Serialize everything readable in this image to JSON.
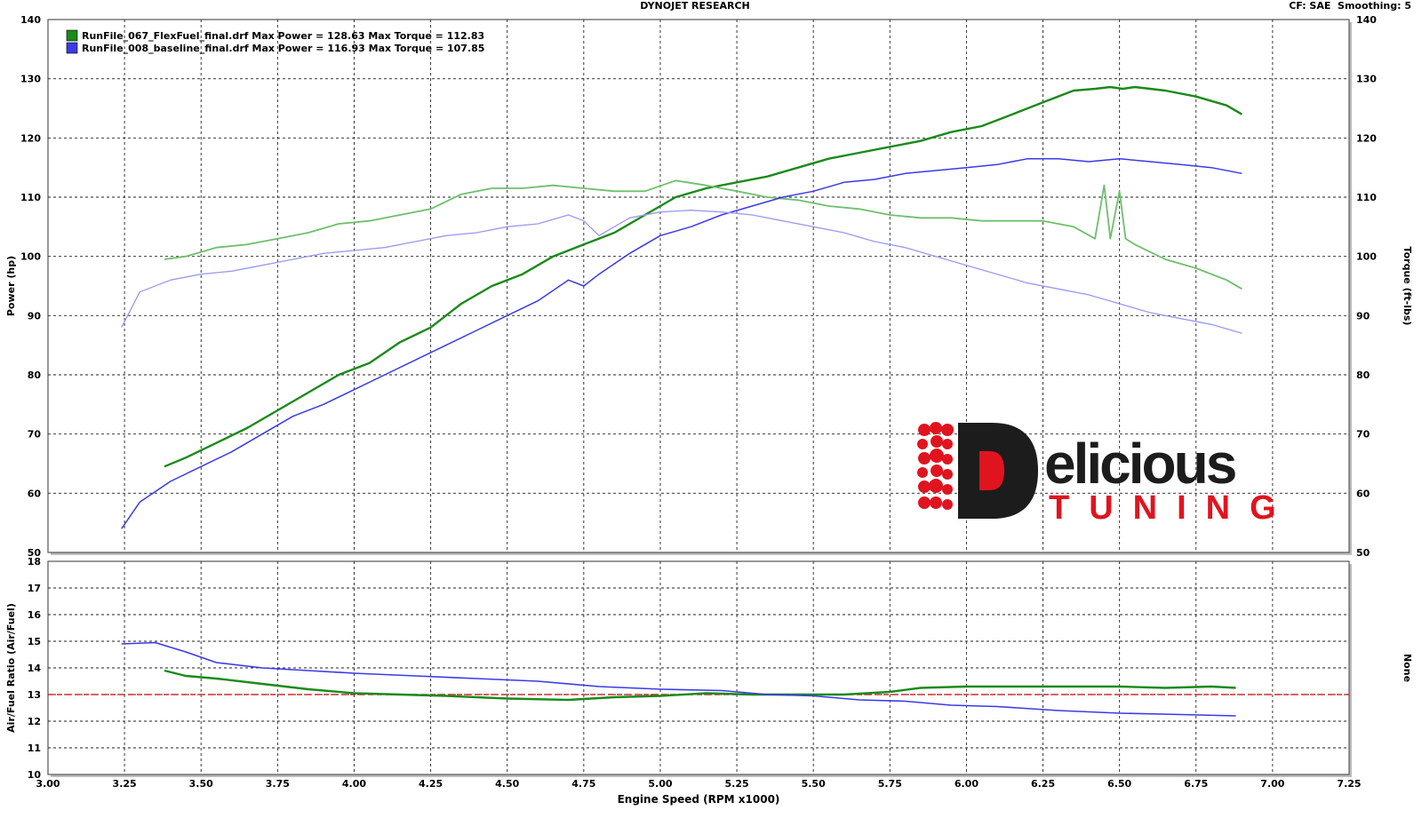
{
  "header": {
    "title": "DYNOJET RESEARCH",
    "cf": "CF: SAE",
    "smoothing": "Smoothing: 5"
  },
  "colors": {
    "run1": "#1a8a1a",
    "run1_torque": "#6cc06c",
    "run2": "#3a3ae8",
    "run2_torque": "#9a9af0",
    "target_line": "#e02020",
    "logo_red": "#e0141e",
    "logo_dark": "#1c1c1c"
  },
  "logo": {
    "text_main": "elicious",
    "text_letter": "D",
    "text_sub": "TUNING"
  },
  "chart_data": [
    {
      "type": "line",
      "legend": [
        {
          "name": "RunFile_067_FlexFuel_final.drf",
          "max_power_label": "Max Power = 128.63",
          "max_torque_label": "Max Torque = 112.83"
        },
        {
          "name": "RunFile_008_baseline_final.drf",
          "max_power_label": "Max Power = 116.93",
          "max_torque_label": "Max Torque = 107.85"
        }
      ],
      "ylabel": "Power (hp)",
      "y2label": "Torque (ft-lbs)",
      "ylim": [
        50,
        140
      ],
      "y2lim": [
        50,
        140
      ],
      "yticks": [
        "50",
        "60",
        "70",
        "80",
        "90",
        "100",
        "110",
        "120",
        "130",
        "140"
      ],
      "xlim": [
        3.0,
        7.25
      ],
      "grid": true,
      "legend_position": "top-left",
      "series": [
        {
          "name": "RunFile_067_FlexFuel_final.drf",
          "measure": "power",
          "x": [
            3.38,
            3.45,
            3.55,
            3.65,
            3.75,
            3.85,
            3.95,
            4.05,
            4.15,
            4.25,
            4.35,
            4.45,
            4.55,
            4.65,
            4.75,
            4.85,
            4.95,
            5.05,
            5.15,
            5.25,
            5.35,
            5.45,
            5.55,
            5.65,
            5.75,
            5.85,
            5.95,
            6.05,
            6.15,
            6.25,
            6.35,
            6.42,
            6.47,
            6.51,
            6.55,
            6.65,
            6.75,
            6.85,
            6.9
          ],
          "y": [
            64.5,
            66,
            68.5,
            71,
            74,
            77,
            80,
            82,
            85.5,
            88,
            92,
            95,
            97,
            100,
            102,
            104,
            107,
            110,
            111.5,
            112.5,
            113.5,
            115,
            116.5,
            117.5,
            118.5,
            119.5,
            121,
            122,
            124,
            126,
            128,
            128.3,
            128.6,
            128.3,
            128.6,
            128,
            127,
            125.5,
            124
          ]
        },
        {
          "name": "RunFile_067_FlexFuel_final.drf",
          "measure": "torque",
          "x": [
            3.38,
            3.45,
            3.55,
            3.65,
            3.75,
            3.85,
            3.95,
            4.05,
            4.15,
            4.25,
            4.35,
            4.45,
            4.55,
            4.65,
            4.75,
            4.85,
            4.95,
            5.05,
            5.15,
            5.25,
            5.35,
            5.45,
            5.55,
            5.65,
            5.75,
            5.85,
            5.95,
            6.05,
            6.15,
            6.25,
            6.35,
            6.42,
            6.45,
            6.47,
            6.5,
            6.52,
            6.55,
            6.65,
            6.75,
            6.85,
            6.9
          ],
          "y": [
            99.5,
            100,
            101.5,
            102,
            103,
            104,
            105.5,
            106,
            107,
            108,
            110.5,
            111.5,
            111.5,
            112,
            111.5,
            111,
            111,
            112.8,
            112,
            111,
            110,
            109.5,
            108.5,
            108,
            107,
            106.5,
            106.5,
            106,
            106,
            106,
            105,
            103,
            112,
            103,
            111,
            103,
            102,
            99.5,
            98,
            96,
            94.5
          ]
        },
        {
          "name": "RunFile_008_baseline_final.drf",
          "measure": "power",
          "x": [
            3.24,
            3.3,
            3.4,
            3.5,
            3.6,
            3.7,
            3.8,
            3.9,
            4.0,
            4.1,
            4.2,
            4.3,
            4.4,
            4.5,
            4.6,
            4.7,
            4.75,
            4.8,
            4.9,
            5.0,
            5.1,
            5.2,
            5.3,
            5.4,
            5.5,
            5.6,
            5.7,
            5.8,
            5.9,
            6.0,
            6.1,
            6.2,
            6.3,
            6.4,
            6.5,
            6.6,
            6.7,
            6.8,
            6.9
          ],
          "y": [
            54,
            58.5,
            62,
            64.5,
            67,
            70,
            73,
            75,
            77.5,
            80,
            82.5,
            85,
            87.5,
            90,
            92.5,
            96,
            95,
            97,
            100.5,
            103.5,
            105,
            107,
            108.5,
            110,
            111,
            112.5,
            113,
            114,
            114.5,
            115,
            115.5,
            116.5,
            116.5,
            116,
            116.5,
            116,
            115.5,
            115,
            114
          ]
        },
        {
          "name": "RunFile_008_baseline_final.drf",
          "measure": "torque",
          "x": [
            3.24,
            3.3,
            3.4,
            3.5,
            3.6,
            3.7,
            3.8,
            3.9,
            4.0,
            4.1,
            4.2,
            4.3,
            4.4,
            4.5,
            4.6,
            4.7,
            4.75,
            4.8,
            4.9,
            5.0,
            5.1,
            5.2,
            5.3,
            5.4,
            5.5,
            5.6,
            5.7,
            5.8,
            5.9,
            6.0,
            6.1,
            6.2,
            6.3,
            6.4,
            6.5,
            6.6,
            6.7,
            6.8,
            6.9
          ],
          "y": [
            88,
            94,
            96,
            97,
            97.5,
            98.5,
            99.5,
            100.5,
            101,
            101.5,
            102.5,
            103.5,
            104,
            105,
            105.5,
            107,
            106,
            103.5,
            106.5,
            107.5,
            107.8,
            107.5,
            107,
            106,
            105,
            104,
            102.5,
            101.5,
            100,
            98.5,
            97,
            95.5,
            94.5,
            93.5,
            92,
            90.5,
            89.5,
            88.5,
            87
          ]
        }
      ]
    },
    {
      "type": "line",
      "ylabel": "Air/Fuel Ratio (Air/Fuel)",
      "y2label": "None",
      "ylim": [
        10,
        18
      ],
      "yticks": [
        "10",
        "11",
        "12",
        "13",
        "14",
        "15",
        "16",
        "17",
        "18"
      ],
      "xlabel": "Engine Speed (RPM x1000)",
      "xlim": [
        3.0,
        7.25
      ],
      "xticks": [
        "3.00",
        "3.25",
        "3.50",
        "3.75",
        "4.00",
        "4.25",
        "4.50",
        "4.75",
        "5.00",
        "5.25",
        "5.50",
        "5.75",
        "6.00",
        "6.25",
        "6.50",
        "6.75",
        "7.00",
        "7.25"
      ],
      "reference_line": 13,
      "grid": true,
      "series": [
        {
          "name": "RunFile_067_FlexFuel_final.drf",
          "x": [
            3.38,
            3.45,
            3.55,
            3.7,
            3.85,
            4.0,
            4.15,
            4.3,
            4.5,
            4.7,
            4.85,
            5.0,
            5.15,
            5.3,
            5.45,
            5.6,
            5.75,
            5.85,
            6.0,
            6.2,
            6.46,
            6.5,
            6.65,
            6.8,
            6.88
          ],
          "y": [
            13.9,
            13.7,
            13.6,
            13.4,
            13.2,
            13.05,
            13.0,
            12.95,
            12.85,
            12.8,
            12.9,
            12.95,
            13.05,
            13.0,
            13.0,
            13.0,
            13.1,
            13.25,
            13.3,
            13.3,
            13.3,
            13.3,
            13.25,
            13.3,
            13.25
          ]
        },
        {
          "name": "RunFile_008_baseline_final.drf",
          "x": [
            3.24,
            3.35,
            3.45,
            3.55,
            3.7,
            3.85,
            4.0,
            4.2,
            4.4,
            4.6,
            4.8,
            5.0,
            5.2,
            5.35,
            5.5,
            5.65,
            5.8,
            5.95,
            6.1,
            6.3,
            6.5,
            6.7,
            6.88
          ],
          "y": [
            14.9,
            14.95,
            14.6,
            14.2,
            14.0,
            13.9,
            13.8,
            13.7,
            13.6,
            13.5,
            13.3,
            13.2,
            13.15,
            13.0,
            12.95,
            12.8,
            12.75,
            12.6,
            12.55,
            12.4,
            12.3,
            12.25,
            12.2
          ]
        }
      ]
    }
  ]
}
